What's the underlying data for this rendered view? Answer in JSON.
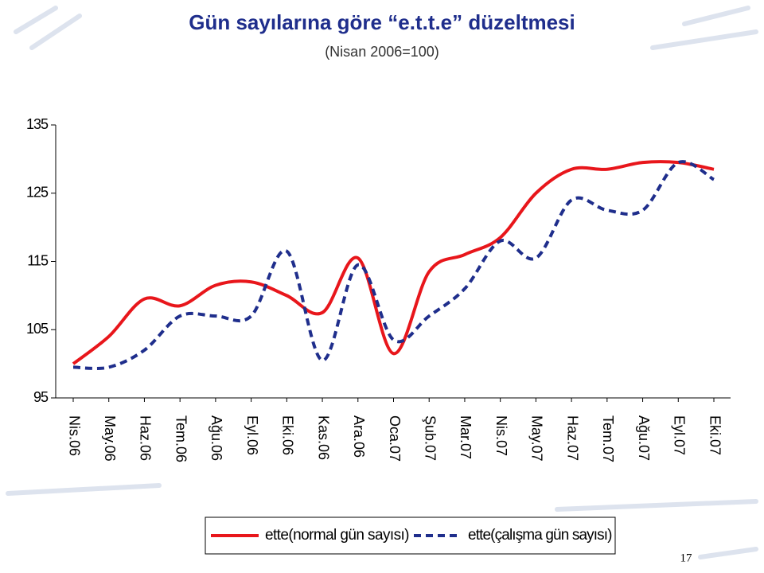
{
  "chart_data": {
    "type": "line",
    "title": "Gün sayılarına göre “e.t.t.e” düzeltmesi",
    "subtitle": "(Nisan 2006=100)",
    "categories": [
      "Nis.06",
      "May.06",
      "Haz.06",
      "Tem.06",
      "Ağu.06",
      "Eyl.06",
      "Eki.06",
      "Kas.06",
      "Ara.06",
      "Oca.07",
      "Şub.07",
      "Mar.07",
      "Nis.07",
      "May.07",
      "Haz.07",
      "Tem.07",
      "Ağu.07",
      "Eyl.07",
      "Eki.07"
    ],
    "series": [
      {
        "name": "ette(normal gün sayısı)",
        "color": "#e8161b",
        "dash": false,
        "values": [
          100,
          104,
          109.5,
          108.5,
          111.5,
          112,
          110,
          107.5,
          115.5,
          101.5,
          113.5,
          116,
          118.5,
          125,
          128.5,
          128.5,
          129.5,
          129.5,
          128.5
        ]
      },
      {
        "name": "ette(çalışma gün sayısı)",
        "color": "#1f2e8c",
        "dash": true,
        "values": [
          99.5,
          99.5,
          102,
          107,
          107,
          107,
          116.5,
          100.5,
          114.5,
          103.5,
          107,
          111,
          118,
          115.5,
          124,
          122.5,
          122.5,
          129.5,
          127
        ]
      }
    ],
    "ylim": [
      95,
      135
    ],
    "yticks": [
      95,
      105,
      115,
      125,
      135
    ],
    "legend": "bottom",
    "page_number": "17"
  }
}
